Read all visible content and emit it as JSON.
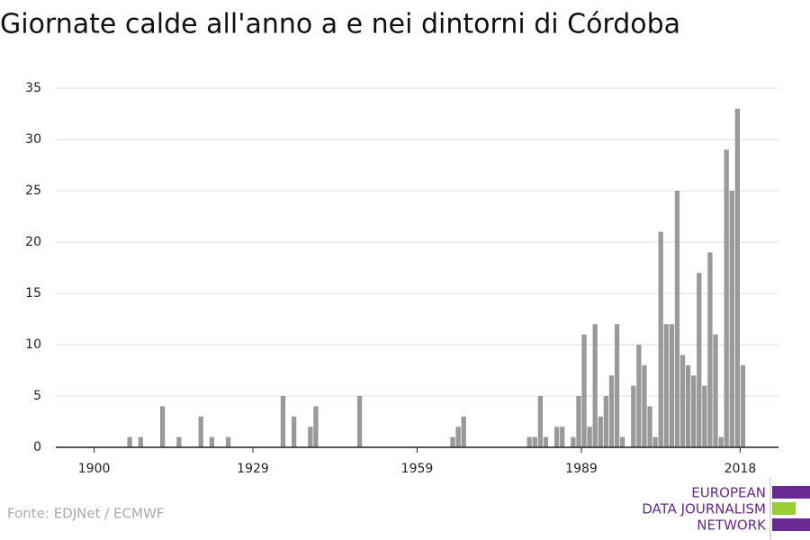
{
  "chart_data": {
    "type": "bar",
    "title": "Giornate calde all'anno a e nei dintorni di Córdoba",
    "source": "Fonte: EDJNet / ECMWF",
    "logo": [
      "EUROPEAN",
      "DATA JOURNALISM",
      "NETWORK"
    ],
    "color": "#999999",
    "x": [
      1906,
      1908,
      1912,
      1915,
      1919,
      1921,
      1924,
      1934,
      1936,
      1939,
      1940,
      1948,
      1965,
      1966,
      1967,
      1979,
      1980,
      1981,
      1982,
      1984,
      1985,
      1987,
      1988,
      1989,
      1990,
      1991,
      1992,
      1993,
      1994,
      1995,
      1996,
      1998,
      1999,
      2000,
      2001,
      2002,
      2003,
      2004,
      2005,
      2006,
      2007,
      2008,
      2009,
      2010,
      2011,
      2012,
      2013,
      2014,
      2015,
      2016,
      2017,
      2018
    ],
    "values": [
      1,
      1,
      4,
      1,
      3,
      1,
      1,
      5,
      3,
      2,
      4,
      5,
      1,
      2,
      3,
      1,
      1,
      5,
      1,
      2,
      2,
      1,
      5,
      11,
      2,
      12,
      3,
      5,
      7,
      12,
      1,
      6,
      10,
      8,
      4,
      1,
      21,
      12,
      12,
      25,
      9,
      8,
      7,
      17,
      6,
      19,
      11,
      1,
      29,
      25,
      33,
      8
    ],
    "xlim": [
      1893,
      2025
    ],
    "xticks": [
      1900,
      1929,
      1959,
      1989,
      2018
    ],
    "ylim": [
      0,
      35
    ],
    "yticks": [
      0,
      5,
      10,
      15,
      20,
      25,
      30,
      35
    ],
    "grid": true
  }
}
